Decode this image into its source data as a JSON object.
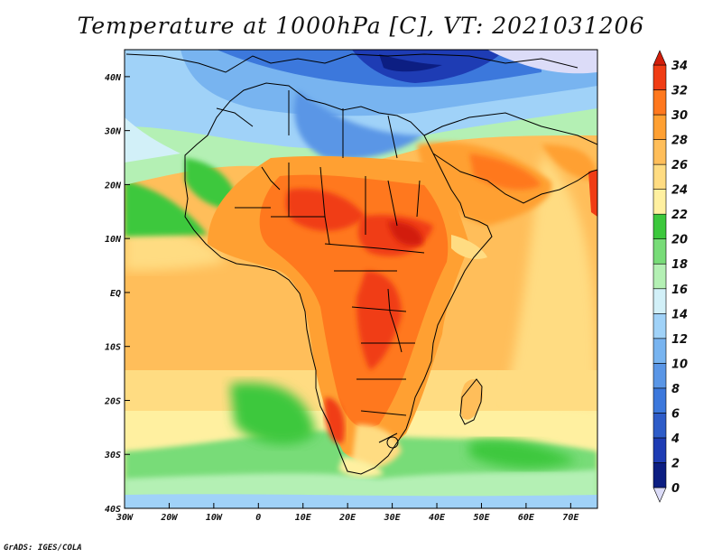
{
  "title": "Temperature at 1000hPa [C], VT: 2021031206",
  "credit": "GrADS: IGES/COLA",
  "map": {
    "lon_range": [
      -30,
      76
    ],
    "lat_range": [
      -40,
      45
    ],
    "x_ticks": [
      {
        "lon": -30,
        "label": "30W"
      },
      {
        "lon": -20,
        "label": "20W"
      },
      {
        "lon": -10,
        "label": "10W"
      },
      {
        "lon": 0,
        "label": "0"
      },
      {
        "lon": 10,
        "label": "10E"
      },
      {
        "lon": 20,
        "label": "20E"
      },
      {
        "lon": 30,
        "label": "30E"
      },
      {
        "lon": 40,
        "label": "40E"
      },
      {
        "lon": 50,
        "label": "50E"
      },
      {
        "lon": 60,
        "label": "60E"
      },
      {
        "lon": 70,
        "label": "70E"
      }
    ],
    "y_ticks": [
      {
        "lat": 40,
        "label": "40N"
      },
      {
        "lat": 30,
        "label": "30N"
      },
      {
        "lat": 20,
        "label": "20N"
      },
      {
        "lat": 10,
        "label": "10N"
      },
      {
        "lat": 0,
        "label": "EQ"
      },
      {
        "lat": -10,
        "label": "10S"
      },
      {
        "lat": -20,
        "label": "20S"
      },
      {
        "lat": -30,
        "label": "30S"
      },
      {
        "lat": -40,
        "label": "40S"
      }
    ]
  },
  "colorbar": {
    "levels": [
      "0",
      "2",
      "4",
      "6",
      "8",
      "10",
      "12",
      "14",
      "16",
      "18",
      "20",
      "22",
      "24",
      "26",
      "28",
      "30",
      "32",
      "34"
    ],
    "colors": [
      "#dcdcf8",
      "#0c1e82",
      "#1e3cb4",
      "#2e5cc8",
      "#3c78dc",
      "#5a96e6",
      "#78b4f0",
      "#a0d2f8",
      "#d2f0f8",
      "#b4f0b4",
      "#78dc78",
      "#3cc83c",
      "#fff0a0",
      "#ffdc82",
      "#ffbe5a",
      "#ffa032",
      "#ff781e",
      "#f03c14",
      "#d21e0a"
    ]
  }
}
